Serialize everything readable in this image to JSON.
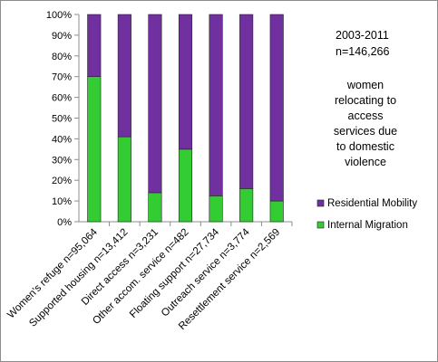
{
  "chart_data": {
    "type": "bar",
    "stacked": true,
    "categories": [
      "Women's refuge n=95,064",
      "Supported housing n=13,412",
      "Direct access n=3,231",
      "Other accom. service n=482",
      "Floating support n=27,734",
      "Outreach service n=3,774",
      "Resettlement service n=2,569"
    ],
    "series": [
      {
        "name": "Internal Migration",
        "color": "#33cc33",
        "values": [
          70,
          41,
          14,
          35,
          12.5,
          16,
          10
        ]
      },
      {
        "name": "Residential Mobility",
        "color": "#7030a0",
        "values": [
          30,
          59,
          86,
          65,
          87.5,
          84,
          90
        ]
      }
    ],
    "ylim": [
      0,
      100
    ],
    "yticks": [
      "0%",
      "10%",
      "20%",
      "30%",
      "40%",
      "50%",
      "60%",
      "70%",
      "80%",
      "90%",
      "100%"
    ],
    "gridlines": false,
    "legend_position": "right",
    "legend_order": [
      "Residential Mobility",
      "Internal Migration"
    ]
  },
  "annotation": {
    "period": "2003-2011",
    "total": "n=146,266",
    "description_lines": [
      "women",
      "relocating to",
      "access",
      "services due",
      "to domestic",
      "violence"
    ]
  }
}
